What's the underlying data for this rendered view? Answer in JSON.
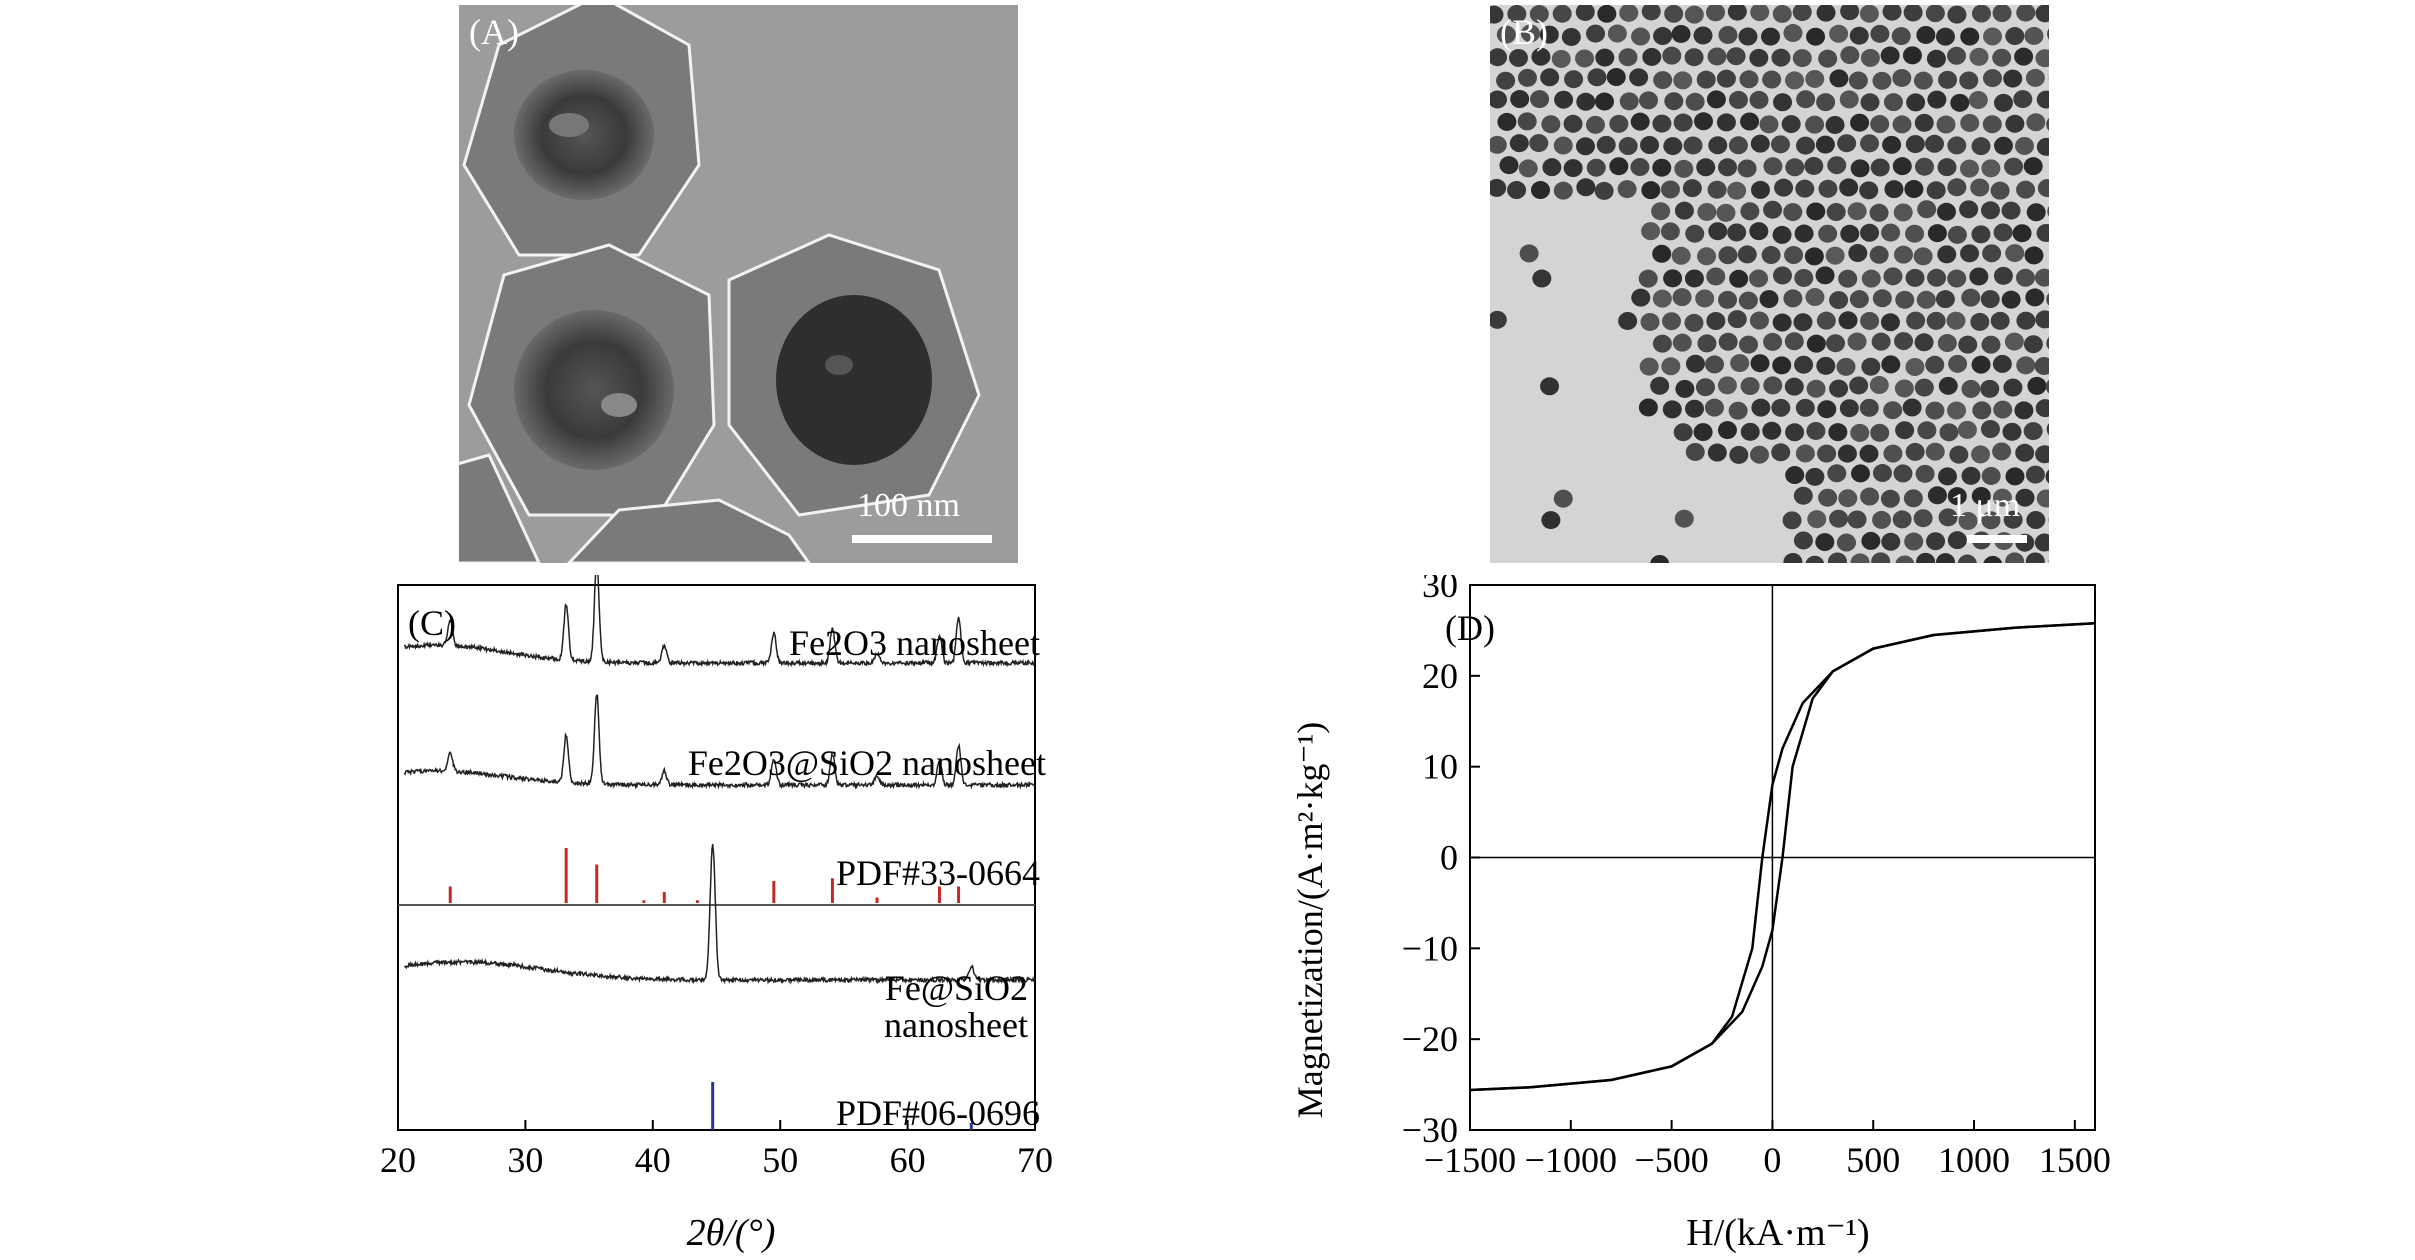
{
  "figure": {
    "panel_a": {
      "label": "(A)",
      "scale_bar": "100 nm"
    },
    "panel_b": {
      "label": "(B)",
      "scale_bar": "1 μm"
    },
    "panel_c": {
      "label": "(C)",
      "labels": {
        "fe2o3": "Fe2O3 nanosheet",
        "fe2o3_sio2": "Fe2O3@SiO2 nanosheet",
        "pdf_33": "PDF#33-0664",
        "fe_sio2": "Fe@SiO2",
        "fe_sio2_2": "nanosheet",
        "pdf_06": "PDF#06-0696"
      },
      "xlabel": "2θ/(°)"
    },
    "panel_d": {
      "label": "(D)",
      "xlabel": "H/(kA·m⁻¹)",
      "ylabel": "Magnetization/(A·m²·kg⁻¹)"
    }
  },
  "chart_data": [
    {
      "type": "line",
      "panel": "(C)",
      "xlabel": "2θ/(°)",
      "ylabel": "",
      "xlim": [
        20,
        70
      ],
      "xticks": [
        20,
        30,
        40,
        50,
        60,
        70
      ],
      "grid": false,
      "series": [
        {
          "name": "Fe2O3 nanosheet",
          "peaks": [
            [
              24.1,
              0.25
            ],
            [
              33.2,
              0.55
            ],
            [
              35.6,
              1.0
            ],
            [
              40.9,
              0.18
            ],
            [
              49.5,
              0.3
            ],
            [
              54.1,
              0.35
            ],
            [
              57.6,
              0.1
            ],
            [
              62.5,
              0.28
            ],
            [
              64.0,
              0.45
            ]
          ]
        },
        {
          "name": "Fe2O3@SiO2 nanosheet",
          "peaks": [
            [
              24.1,
              0.2
            ],
            [
              33.2,
              0.5
            ],
            [
              35.6,
              0.95
            ],
            [
              40.9,
              0.15
            ],
            [
              49.5,
              0.28
            ],
            [
              54.1,
              0.33
            ],
            [
              57.6,
              0.1
            ],
            [
              62.5,
              0.25
            ],
            [
              64.0,
              0.42
            ]
          ]
        },
        {
          "name": "PDF#33-0664",
          "sticks": [
            [
              24.1,
              0.3
            ],
            [
              33.2,
              1.0
            ],
            [
              35.6,
              0.7
            ],
            [
              39.3,
              0.05
            ],
            [
              40.9,
              0.2
            ],
            [
              43.5,
              0.05
            ],
            [
              49.5,
              0.4
            ],
            [
              54.1,
              0.45
            ],
            [
              57.6,
              0.1
            ],
            [
              62.5,
              0.3
            ],
            [
              64.0,
              0.3
            ]
          ]
        },
        {
          "name": "Fe@SiO2 nanosheet",
          "peaks": [
            [
              44.7,
              1.0
            ],
            [
              65.0,
              0.1
            ]
          ]
        },
        {
          "name": "PDF#06-0696",
          "sticks": [
            [
              44.7,
              1.0
            ],
            [
              65.0,
              0.15
            ]
          ]
        }
      ]
    },
    {
      "type": "line",
      "panel": "(D)",
      "xlabel": "H/(kA·m⁻¹)",
      "ylabel": "Magnetization/(A·m²·kg⁻¹)",
      "xlim": [
        -1500,
        1600
      ],
      "ylim": [
        -30,
        30
      ],
      "xticks": [
        -1500,
        -1000,
        -500,
        0,
        500,
        1000,
        1500
      ],
      "yticks": [
        -30,
        -20,
        -10,
        0,
        10,
        20,
        30
      ],
      "grid": false,
      "series": [
        {
          "name": "descending",
          "x": [
            1600,
            1200,
            800,
            500,
            300,
            150,
            50,
            0,
            -50,
            -100,
            -200,
            -300,
            -500,
            -800,
            -1200,
            -1500
          ],
          "y": [
            25.8,
            25.3,
            24.5,
            23.0,
            20.5,
            17.0,
            12.0,
            8.0,
            0.0,
            -10.0,
            -17.5,
            -20.5,
            -23.0,
            -24.5,
            -25.3,
            -25.6
          ]
        },
        {
          "name": "ascending",
          "x": [
            -1500,
            -1200,
            -800,
            -500,
            -300,
            -150,
            -50,
            0,
            50,
            100,
            200,
            300,
            500,
            800,
            1200,
            1600
          ],
          "y": [
            -25.6,
            -25.3,
            -24.5,
            -23.0,
            -20.5,
            -17.0,
            -12.0,
            -8.0,
            0.0,
            10.0,
            17.5,
            20.5,
            23.0,
            24.5,
            25.3,
            25.8
          ]
        }
      ]
    }
  ]
}
